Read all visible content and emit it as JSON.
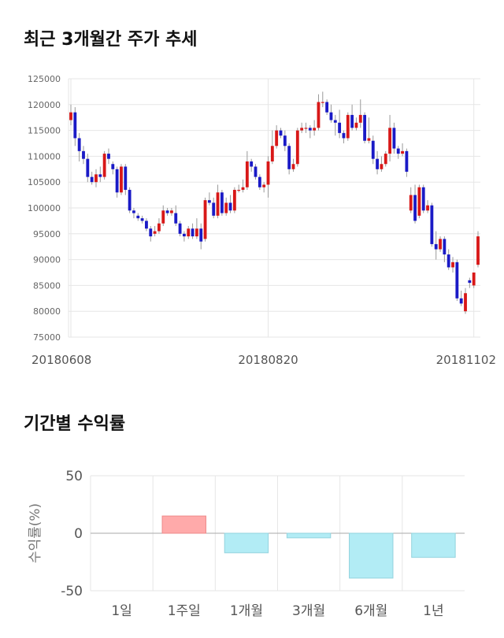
{
  "titles": {
    "price_trend": "최근 3개월간 주가 추세",
    "returns": "기간별 수익률"
  },
  "colors": {
    "up": "#d81818",
    "down": "#1a1ac6",
    "wick": "#999999",
    "positive_bar": "#ffaaaa",
    "negative_bar": "#b2ecf5"
  },
  "chart_data": [
    {
      "type": "candlestick",
      "title": "최근 3개월간 주가 추세",
      "ylim": [
        75000,
        125000
      ],
      "yticks": [
        75000,
        80000,
        85000,
        90000,
        95000,
        100000,
        105000,
        110000,
        115000,
        120000,
        125000
      ],
      "xtick_labels": [
        {
          "index": 0,
          "label": "20180608"
        },
        {
          "index": 47,
          "label": "20180820"
        },
        {
          "index": 96,
          "label": "20181102"
        }
      ],
      "grid": true,
      "candles": [
        [
          117000,
          118500,
          116000,
          120000
        ],
        [
          118500,
          113500,
          112000,
          119500
        ],
        [
          113500,
          111000,
          109000,
          114500
        ],
        [
          111000,
          109500,
          108500,
          112000
        ],
        [
          109500,
          106000,
          105000,
          110500
        ],
        [
          106000,
          105000,
          104500,
          107000
        ],
        [
          105000,
          106500,
          104000,
          107500
        ],
        [
          106500,
          106000,
          105000,
          108000
        ],
        [
          106000,
          110500,
          105500,
          111000
        ],
        [
          110500,
          109500,
          108500,
          111500
        ],
        [
          108500,
          107500,
          106500,
          109000
        ],
        [
          107500,
          103000,
          102000,
          108000
        ],
        [
          103000,
          108000,
          102500,
          108500
        ],
        [
          108000,
          103500,
          102500,
          108500
        ],
        [
          103500,
          99500,
          99000,
          104000
        ],
        [
          99500,
          99000,
          98000,
          100000
        ],
        [
          98500,
          98000,
          97500,
          99000
        ],
        [
          98000,
          97500,
          97000,
          98500
        ],
        [
          97500,
          96000,
          95500,
          98000
        ],
        [
          96000,
          94500,
          93500,
          96500
        ],
        [
          95000,
          95500,
          94500,
          96500
        ],
        [
          95500,
          97000,
          95000,
          98000
        ],
        [
          97000,
          99500,
          96500,
          100500
        ],
        [
          99500,
          99000,
          98500,
          100000
        ],
        [
          99000,
          99500,
          98500,
          100000
        ],
        [
          99000,
          97000,
          96500,
          100500
        ],
        [
          97000,
          95000,
          94500,
          97500
        ],
        [
          95000,
          94500,
          93500,
          95500
        ],
        [
          94500,
          96000,
          94000,
          96500
        ],
        [
          96000,
          94500,
          94000,
          97000
        ],
        [
          94500,
          96000,
          94000,
          98000
        ],
        [
          96000,
          93500,
          92000,
          97000
        ],
        [
          94000,
          101500,
          93500,
          102000
        ],
        [
          101500,
          101000,
          100500,
          103000
        ],
        [
          101000,
          98500,
          98000,
          102000
        ],
        [
          98500,
          103000,
          98000,
          104500
        ],
        [
          103000,
          99000,
          98500,
          103500
        ],
        [
          99000,
          101000,
          98500,
          102000
        ],
        [
          101000,
          99500,
          99000,
          102500
        ],
        [
          99500,
          103500,
          99000,
          104000
        ],
        [
          103500,
          103500,
          103000,
          104500
        ],
        [
          103500,
          104000,
          103000,
          105500
        ],
        [
          104000,
          109000,
          103500,
          111000
        ],
        [
          109000,
          108000,
          107000,
          109500
        ],
        [
          108000,
          106000,
          105500,
          108500
        ],
        [
          106000,
          104000,
          103500,
          106500
        ],
        [
          104000,
          104500,
          103000,
          105000
        ],
        [
          104500,
          109000,
          102000,
          110000
        ],
        [
          109000,
          112000,
          108500,
          115000
        ],
        [
          112000,
          115000,
          111500,
          116000
        ],
        [
          115000,
          114000,
          113500,
          115500
        ],
        [
          114000,
          112000,
          111000,
          115000
        ],
        [
          112000,
          107500,
          106500,
          112500
        ],
        [
          107500,
          108500,
          107000,
          109500
        ],
        [
          108500,
          115000,
          108000,
          115500
        ],
        [
          115000,
          115500,
          114500,
          116500
        ],
        [
          115500,
          115500,
          114500,
          116500
        ],
        [
          115500,
          115000,
          113500,
          116000
        ],
        [
          115000,
          115500,
          114000,
          117000
        ],
        [
          115500,
          120500,
          115000,
          122000
        ],
        [
          120500,
          120500,
          119500,
          122500
        ],
        [
          120500,
          118500,
          118000,
          121000
        ],
        [
          118500,
          117000,
          116500,
          120000
        ],
        [
          117000,
          116500,
          114000,
          118000
        ],
        [
          116500,
          114500,
          113500,
          119000
        ],
        [
          114500,
          113500,
          112500,
          115000
        ],
        [
          113500,
          118000,
          113000,
          118500
        ],
        [
          118000,
          115500,
          115000,
          120000
        ],
        [
          115500,
          116500,
          115000,
          117500
        ],
        [
          116500,
          118000,
          115500,
          121000
        ],
        [
          118000,
          113000,
          112500,
          118500
        ],
        [
          113000,
          113500,
          112500,
          117500
        ],
        [
          113000,
          109500,
          108500,
          114000
        ],
        [
          109500,
          107500,
          106500,
          111000
        ],
        [
          107500,
          108500,
          107000,
          110000
        ],
        [
          108500,
          110500,
          108000,
          111000
        ],
        [
          110500,
          115500,
          109000,
          118000
        ],
        [
          115500,
          111500,
          110500,
          116500
        ],
        [
          111500,
          110500,
          109500,
          112000
        ],
        [
          110500,
          111000,
          110000,
          112500
        ],
        [
          111000,
          107000,
          106000,
          111500
        ],
        [
          99500,
          102500,
          99000,
          104000
        ],
        [
          102500,
          97500,
          97000,
          104500
        ],
        [
          98500,
          104000,
          98000,
          104500
        ],
        [
          104000,
          99500,
          99000,
          104500
        ],
        [
          99500,
          100500,
          99000,
          101500
        ],
        [
          100500,
          93000,
          92500,
          101000
        ],
        [
          93000,
          92000,
          90000,
          95500
        ],
        [
          92000,
          94000,
          91500,
          94500
        ],
        [
          94000,
          91000,
          89500,
          94500
        ],
        [
          91000,
          88500,
          88000,
          92000
        ],
        [
          88500,
          89500,
          87500,
          90500
        ],
        [
          89500,
          82500,
          82000,
          90000
        ],
        [
          82500,
          81500,
          81000,
          84000
        ],
        [
          80000,
          83500,
          79500,
          84500
        ],
        [
          86000,
          85500,
          84500,
          86500
        ],
        [
          85000,
          87500,
          84500,
          87500
        ],
        [
          89000,
          94500,
          88500,
          95500
        ]
      ]
    },
    {
      "type": "bar",
      "title": "기간별 수익률",
      "ylabel": "수익률(%)",
      "ylim": [
        -50,
        50
      ],
      "yticks": [
        50,
        0,
        -50
      ],
      "categories": [
        "1일",
        "1주일",
        "1개월",
        "3개월",
        "6개월",
        "1년"
      ],
      "values": [
        0,
        15,
        -17,
        -4,
        -39,
        -21
      ],
      "grid": true
    }
  ]
}
